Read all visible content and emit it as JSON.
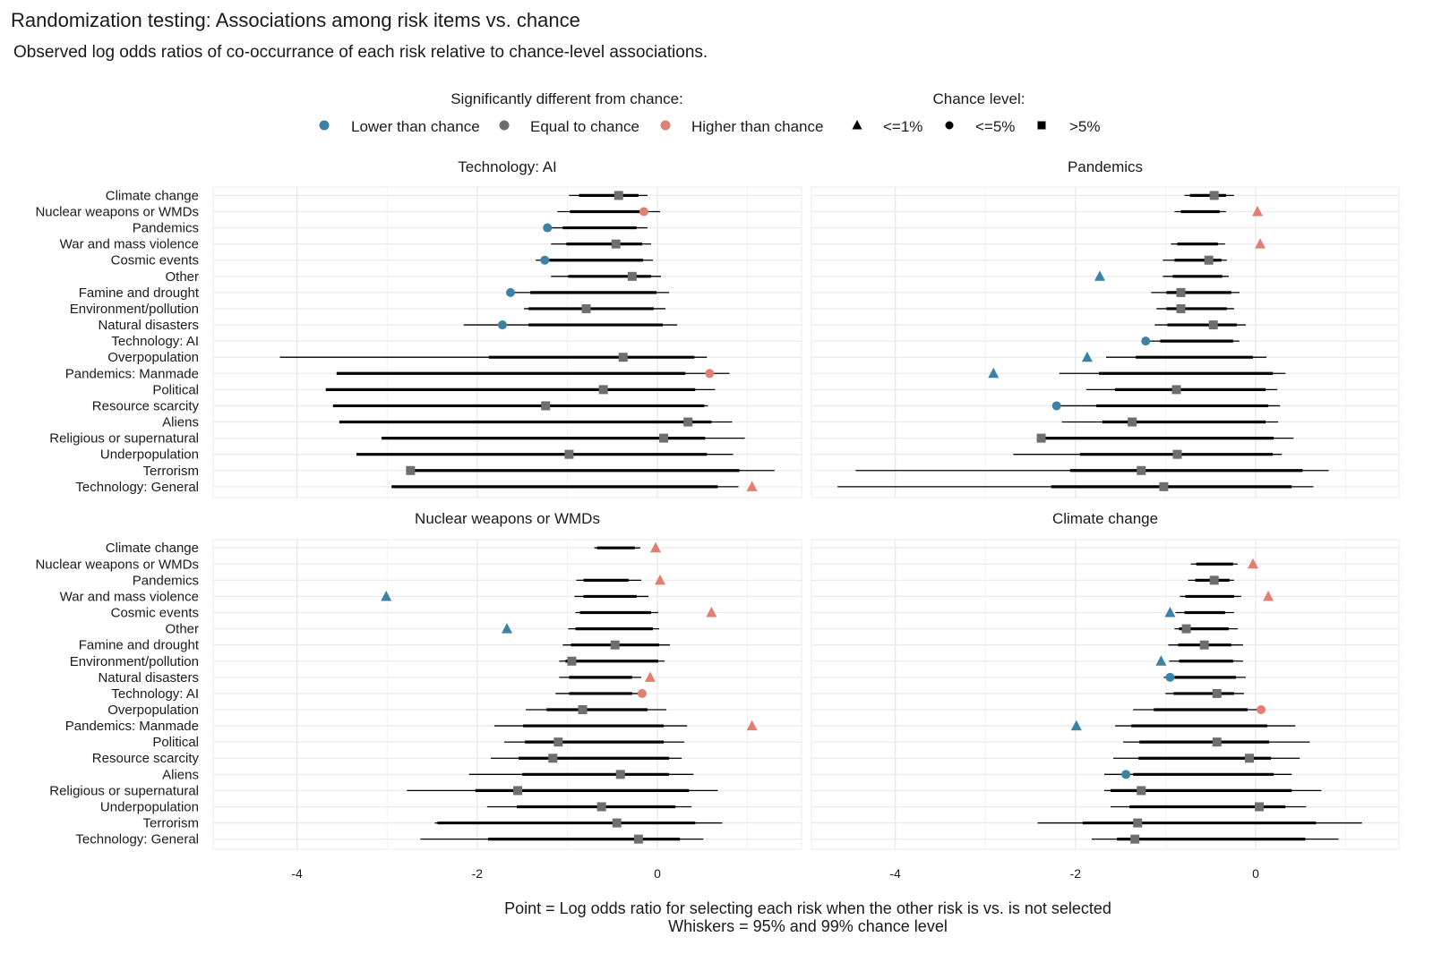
{
  "chart_data": {
    "type": "scatter",
    "subtype": "dot-and-whisker, faceted 2x2",
    "title": "Randomization testing: Associations among risk items vs. chance",
    "subtitle": "Observed log odds ratios of co-occurrance of each risk relative to chance-level associations.",
    "legend": {
      "placement": "top",
      "color_title": "Significantly different from chance:",
      "color_items": [
        {
          "key": "L",
          "label": "Lower than chance",
          "color": "#3b82a5"
        },
        {
          "key": "E",
          "label": "Equal to chance",
          "color": "#6e6e6e"
        },
        {
          "key": "H",
          "label": "Higher than chance",
          "color": "#e07f72"
        }
      ],
      "shape_title": "Chance level:",
      "shape_items": [
        {
          "key": "T",
          "label": "<=1%",
          "shape": "triangle"
        },
        {
          "key": "C",
          "label": "<=5%",
          "shape": "circle"
        },
        {
          "key": "S",
          "label": ">5%",
          "shape": "square"
        }
      ]
    },
    "xlim": [
      -4.93,
      1.6
    ],
    "x_ticks": [
      -4,
      -2,
      0
    ],
    "x_tick_labels": [
      "-4",
      "-2",
      "0"
    ],
    "x_minor_gridlines": [
      -3,
      -1,
      1
    ],
    "grid": true,
    "caption": [
      "Point = Log odds ratio for selecting each risk when the other risk is vs. is not selected",
      "Whiskers = 95% and 99% chance level"
    ],
    "categories": [
      "Climate change",
      "Nuclear weapons or WMDs",
      "Pandemics",
      "War and mass violence",
      "Cosmic events",
      "Other",
      "Famine and drought",
      "Environment/pollution",
      "Natural disasters",
      "Technology: AI",
      "Overpopulation",
      "Pandemics: Manmade",
      "Political",
      "Resource scarcity",
      "Aliens",
      "Religious or supernatural",
      "Underpopulation",
      "Terrorism",
      "Technology: General"
    ],
    "row_fields": [
      "log_odds_ratio",
      "significance",
      "chance_level",
      "ci95_low",
      "ci95_high",
      "ci99_low",
      "ci99_high"
    ],
    "panels": [
      {
        "title": "Technology: AI",
        "rows": [
          [
            -0.43,
            "E",
            "S",
            -0.87,
            -0.21,
            -0.98,
            -0.11
          ],
          [
            -0.15,
            "H",
            "C",
            -0.97,
            -0.13,
            -1.11,
            0.03
          ],
          [
            -1.22,
            "L",
            "C",
            -1.05,
            -0.23,
            -1.22,
            -0.11
          ],
          [
            -0.46,
            "E",
            "S",
            -1.01,
            -0.17,
            -1.18,
            -0.07
          ],
          [
            -1.25,
            "L",
            "C",
            -1.2,
            -0.16,
            -1.35,
            -0.05
          ],
          [
            -0.28,
            "E",
            "S",
            -0.99,
            -0.07,
            -1.18,
            0.04
          ],
          [
            -1.63,
            "L",
            "C",
            -1.41,
            -0.01,
            -1.63,
            0.13
          ],
          [
            -0.79,
            "E",
            "S",
            -1.43,
            -0.04,
            -1.48,
            0.09
          ],
          [
            -1.72,
            "L",
            "C",
            -1.43,
            0.06,
            -2.15,
            0.22
          ],
          null,
          [
            -0.38,
            "E",
            "S",
            -1.87,
            0.41,
            -4.19,
            0.55
          ],
          [
            0.58,
            "H",
            "C",
            -3.56,
            0.31,
            -3.56,
            0.8
          ],
          [
            -0.6,
            "E",
            "S",
            -3.68,
            0.42,
            -3.68,
            0.64
          ],
          [
            -1.24,
            "E",
            "S",
            -3.6,
            0.52,
            -3.6,
            0.56
          ],
          [
            0.34,
            "E",
            "S",
            -3.53,
            0.6,
            -3.53,
            0.83
          ],
          [
            0.07,
            "E",
            "S",
            -3.06,
            0.53,
            -3.06,
            0.97
          ],
          [
            -0.98,
            "E",
            "S",
            -3.34,
            0.55,
            -3.34,
            0.84
          ],
          [
            -2.74,
            "E",
            "S",
            -2.74,
            0.91,
            -2.74,
            1.3
          ],
          [
            1.05,
            "H",
            "T",
            -2.95,
            0.67,
            -2.95,
            0.9
          ]
        ]
      },
      {
        "title": "Pandemics",
        "rows": [
          [
            -0.46,
            "E",
            "S",
            -0.73,
            -0.33,
            -0.79,
            -0.24
          ],
          [
            0.02,
            "H",
            "T",
            -0.83,
            -0.4,
            -0.9,
            -0.33
          ],
          null,
          [
            0.05,
            "H",
            "T",
            -0.87,
            -0.42,
            -0.94,
            -0.34
          ],
          [
            -0.52,
            "E",
            "S",
            -0.9,
            -0.38,
            -1.03,
            -0.32
          ],
          [
            -1.73,
            "L",
            "T",
            -0.92,
            -0.37,
            -1.03,
            -0.3
          ],
          [
            -0.83,
            "E",
            "S",
            -0.99,
            -0.27,
            -1.16,
            -0.18
          ],
          [
            -0.83,
            "E",
            "S",
            -0.99,
            -0.32,
            -1.1,
            -0.24
          ],
          [
            -0.47,
            "E",
            "S",
            -0.98,
            -0.21,
            -1.12,
            -0.11
          ],
          [
            -1.22,
            "L",
            "C",
            -1.06,
            -0.25,
            -1.22,
            -0.18
          ],
          [
            -1.87,
            "L",
            "T",
            -1.33,
            -0.03,
            -1.66,
            0.12
          ],
          [
            -2.91,
            "L",
            "T",
            -1.74,
            0.19,
            -2.18,
            0.33
          ],
          [
            -0.88,
            "E",
            "S",
            -1.56,
            0.11,
            -1.88,
            0.24
          ],
          [
            -2.21,
            "L",
            "C",
            -1.77,
            0.14,
            -2.21,
            0.27
          ],
          [
            -1.37,
            "E",
            "S",
            -1.7,
            0.11,
            -2.15,
            0.25
          ],
          [
            -2.38,
            "E",
            "S",
            -2.38,
            0.2,
            -2.38,
            0.42
          ],
          [
            -0.87,
            "E",
            "S",
            -1.95,
            0.19,
            -2.69,
            0.29
          ],
          [
            -1.27,
            "E",
            "S",
            -2.06,
            0.52,
            -4.44,
            0.81
          ],
          [
            -1.02,
            "E",
            "S",
            -2.27,
            0.4,
            -4.64,
            0.64
          ]
        ]
      },
      {
        "title": "Nuclear weapons or WMDs",
        "rows": [
          [
            -0.02,
            "H",
            "T",
            -0.67,
            -0.25,
            -0.7,
            -0.19
          ],
          null,
          [
            0.03,
            "H",
            "T",
            -0.82,
            -0.32,
            -0.9,
            -0.18
          ],
          [
            -3.01,
            "L",
            "T",
            -0.82,
            -0.23,
            -0.92,
            -0.1
          ],
          [
            0.6,
            "H",
            "T",
            -0.86,
            -0.07,
            -0.91,
            0.01
          ],
          [
            -1.67,
            "L",
            "T",
            -0.91,
            -0.05,
            -0.99,
            0.02
          ],
          [
            -0.47,
            "E",
            "S",
            -0.96,
            0.02,
            -1.05,
            0.14
          ],
          [
            -0.95,
            "E",
            "S",
            -1.02,
            0.01,
            -1.09,
            0.08
          ],
          [
            -0.08,
            "H",
            "T",
            -0.98,
            -0.28,
            -1.09,
            -0.18
          ],
          [
            -0.17,
            "H",
            "C",
            -0.98,
            -0.28,
            -1.13,
            -0.17
          ],
          [
            -0.83,
            "E",
            "S",
            -1.23,
            -0.11,
            -1.46,
            0.1
          ],
          [
            1.05,
            "H",
            "T",
            -1.49,
            0.07,
            -1.81,
            0.33
          ],
          [
            -1.1,
            "E",
            "S",
            -1.47,
            0.07,
            -1.7,
            0.3
          ],
          [
            -1.16,
            "E",
            "S",
            -1.54,
            0.13,
            -1.85,
            0.27
          ],
          [
            -0.41,
            "E",
            "S",
            -1.5,
            0.13,
            -2.09,
            0.4
          ],
          [
            -1.55,
            "E",
            "S",
            -2.02,
            0.35,
            -2.78,
            0.67
          ],
          [
            -0.62,
            "E",
            "S",
            -1.56,
            0.2,
            -1.89,
            0.38
          ],
          [
            -0.45,
            "E",
            "S",
            -2.44,
            0.42,
            -2.47,
            0.72
          ],
          [
            -0.21,
            "E",
            "S",
            -1.88,
            0.25,
            -2.63,
            0.51
          ]
        ]
      },
      {
        "title": "Climate change",
        "rows": [
          null,
          [
            -0.03,
            "H",
            "T",
            -0.66,
            -0.25,
            -0.72,
            -0.2
          ],
          [
            -0.46,
            "E",
            "S",
            -0.67,
            -0.29,
            -0.75,
            -0.24
          ],
          [
            0.14,
            "H",
            "T",
            -0.78,
            -0.24,
            -0.84,
            -0.16
          ],
          [
            -0.95,
            "L",
            "T",
            -0.79,
            -0.34,
            -0.89,
            -0.24
          ],
          [
            -0.77,
            "E",
            "S",
            -0.85,
            -0.3,
            -0.9,
            -0.2
          ],
          [
            -0.57,
            "E",
            "S",
            -0.86,
            -0.27,
            -0.97,
            -0.14
          ],
          [
            -1.05,
            "L",
            "T",
            -0.85,
            -0.25,
            -0.96,
            -0.14
          ],
          [
            -0.95,
            "L",
            "C",
            -0.9,
            -0.22,
            -1.02,
            -0.11
          ],
          [
            -0.43,
            "E",
            "S",
            -0.91,
            -0.24,
            -1.0,
            -0.13
          ],
          [
            0.06,
            "H",
            "C",
            -1.13,
            -0.09,
            -1.36,
            0.06
          ],
          [
            -1.99,
            "L",
            "T",
            -1.38,
            0.13,
            -1.56,
            0.44
          ],
          [
            -0.43,
            "E",
            "S",
            -1.29,
            0.15,
            -1.47,
            0.6
          ],
          [
            -0.07,
            "E",
            "S",
            -1.3,
            0.17,
            -1.58,
            0.49
          ],
          [
            -1.44,
            "L",
            "C",
            -1.36,
            0.2,
            -1.68,
            0.4
          ],
          [
            -1.27,
            "E",
            "S",
            -1.61,
            0.4,
            -1.68,
            0.73
          ],
          [
            0.04,
            "E",
            "S",
            -1.4,
            0.33,
            -1.61,
            0.56
          ],
          [
            -1.31,
            "E",
            "S",
            -1.92,
            0.67,
            -2.42,
            1.18
          ],
          [
            -1.34,
            "E",
            "S",
            -1.54,
            0.55,
            -1.82,
            0.92
          ]
        ]
      }
    ]
  }
}
